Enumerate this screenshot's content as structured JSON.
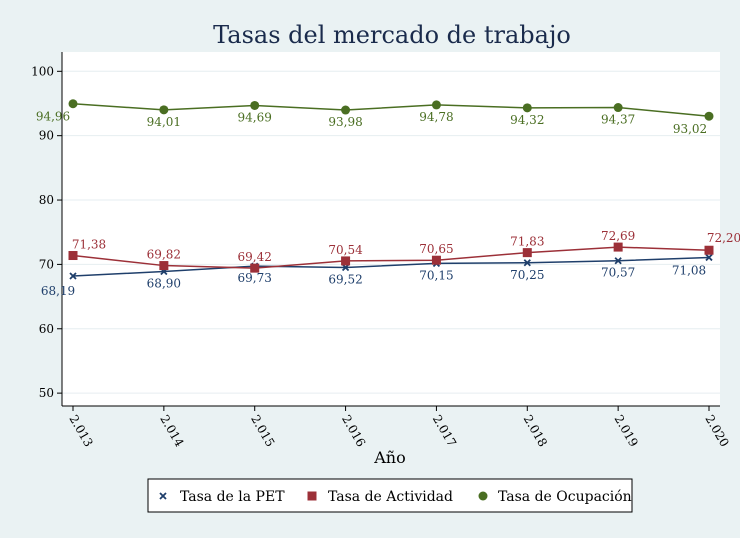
{
  "chart_data": {
    "type": "line",
    "title": "Tasas del mercado de trabajo",
    "xlabel": "Año",
    "ylabel": "",
    "x": [
      "2.013",
      "2.014",
      "2.015",
      "2.016",
      "2.017",
      "2.018",
      "2.019",
      "2.020"
    ],
    "ylim": [
      48,
      103
    ],
    "yticks": [
      50,
      60,
      70,
      80,
      90,
      100
    ],
    "ytick_labels": [
      "50",
      "60",
      "70",
      "80",
      "90",
      "100"
    ],
    "grid": true,
    "legend_position": "bottom",
    "series": [
      {
        "name": "Tasa de la PET",
        "color": "#1f3f6b",
        "marker": "x",
        "values": [
          68.19,
          68.9,
          69.73,
          69.52,
          70.15,
          70.25,
          70.57,
          71.08
        ],
        "labels": [
          "68,19",
          "68,90",
          "69,73",
          "69,52",
          "70,15",
          "70,25",
          "70,57",
          "71,08"
        ]
      },
      {
        "name": "Tasa de Actividad",
        "color": "#9c3038",
        "marker": "square",
        "values": [
          71.38,
          69.82,
          69.42,
          70.54,
          70.65,
          71.83,
          72.69,
          72.2
        ],
        "labels": [
          "71,38",
          "69,82",
          "69,42",
          "70,54",
          "70,65",
          "71,83",
          "72,69",
          "72,20"
        ]
      },
      {
        "name": "Tasa de Ocupación",
        "color": "#4a6e22",
        "marker": "circle",
        "values": [
          94.96,
          94.01,
          94.69,
          93.98,
          94.78,
          94.32,
          94.37,
          93.02
        ],
        "labels": [
          "94,96",
          "94,01",
          "94,69",
          "93,98",
          "94,78",
          "94,32",
          "94,37",
          "93,02"
        ]
      }
    ]
  }
}
